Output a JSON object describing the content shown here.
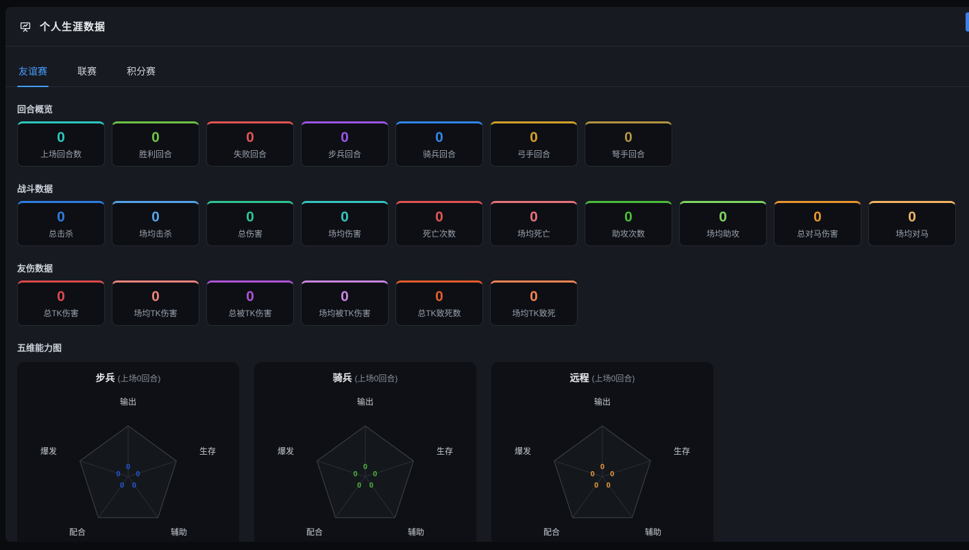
{
  "header": {
    "title": "个人生涯数据",
    "icon": "presentation-board-icon"
  },
  "tabs": [
    {
      "label": "友谊赛",
      "active": true
    },
    {
      "label": "联赛",
      "active": false
    },
    {
      "label": "积分赛",
      "active": false
    }
  ],
  "accent": {
    "active_tab": "#4a9eff",
    "edge_button": "#3e7fe8"
  },
  "sections": [
    {
      "title": "回合概览",
      "cards": [
        {
          "label": "上场回合数",
          "value": "0",
          "color": "#2bc8be"
        },
        {
          "label": "胜利回合",
          "value": "0",
          "color": "#6ec243"
        },
        {
          "label": "失败回合",
          "value": "0",
          "color": "#e25451"
        },
        {
          "label": "步兵回合",
          "value": "0",
          "color": "#9a55e8"
        },
        {
          "label": "骑兵回合",
          "value": "0",
          "color": "#2f86e8"
        },
        {
          "label": "弓手回合",
          "value": "0",
          "color": "#d3a128"
        },
        {
          "label": "弩手回合",
          "value": "0",
          "color": "#b2953f"
        }
      ]
    },
    {
      "title": "战斗数据",
      "cards": [
        {
          "label": "总击杀",
          "value": "0",
          "color": "#2e7de0"
        },
        {
          "label": "场均击杀",
          "value": "0",
          "color": "#55a2e8"
        },
        {
          "label": "总伤害",
          "value": "0",
          "color": "#2ec492"
        },
        {
          "label": "场均伤害",
          "value": "0",
          "color": "#36c4c0"
        },
        {
          "label": "死亡次数",
          "value": "0",
          "color": "#e25451"
        },
        {
          "label": "场均死亡",
          "value": "0",
          "color": "#e8717a"
        },
        {
          "label": "助攻次数",
          "value": "0",
          "color": "#4cbc3a"
        },
        {
          "label": "场均助攻",
          "value": "0",
          "color": "#7ed65e"
        },
        {
          "label": "总对马伤害",
          "value": "0",
          "color": "#e8942f"
        },
        {
          "label": "场均对马",
          "value": "0",
          "color": "#f0b45e"
        }
      ]
    },
    {
      "title": "友伤数据",
      "cards": [
        {
          "label": "总TK伤害",
          "value": "0",
          "color": "#da4a4e"
        },
        {
          "label": "场均TK伤害",
          "value": "0",
          "color": "#e8837b"
        },
        {
          "label": "总被TK伤害",
          "value": "0",
          "color": "#ad53d6"
        },
        {
          "label": "场均被TK伤害",
          "value": "0",
          "color": "#c687de"
        },
        {
          "label": "总TK致死数",
          "value": "0",
          "color": "#e55c2b"
        },
        {
          "label": "场均TK致死",
          "value": "0",
          "color": "#ee8453"
        }
      ]
    }
  ],
  "radar_section": {
    "title": "五维能力图"
  },
  "chart_data": [
    {
      "type": "radar",
      "title": "步兵",
      "subtitle": "(上场0回合)",
      "categories": [
        "输出",
        "生存",
        "辅助",
        "配合",
        "爆发"
      ],
      "values": [
        0,
        0,
        0,
        0,
        0
      ],
      "value_color": "#2457d8",
      "grid": "pentagon-outline-with-spokes",
      "legend_position": "none"
    },
    {
      "type": "radar",
      "title": "骑兵",
      "subtitle": "(上场0回合)",
      "categories": [
        "输出",
        "生存",
        "辅助",
        "配合",
        "爆发"
      ],
      "values": [
        0,
        0,
        0,
        0,
        0
      ],
      "value_color": "#4fb43c",
      "grid": "pentagon-outline-with-spokes",
      "legend_position": "none"
    },
    {
      "type": "radar",
      "title": "远程",
      "subtitle": "(上场0回合)",
      "categories": [
        "输出",
        "生存",
        "辅助",
        "配合",
        "爆发"
      ],
      "values": [
        0,
        0,
        0,
        0,
        0
      ],
      "value_color": "#e9993c",
      "grid": "pentagon-outline-with-spokes",
      "legend_position": "none"
    }
  ]
}
